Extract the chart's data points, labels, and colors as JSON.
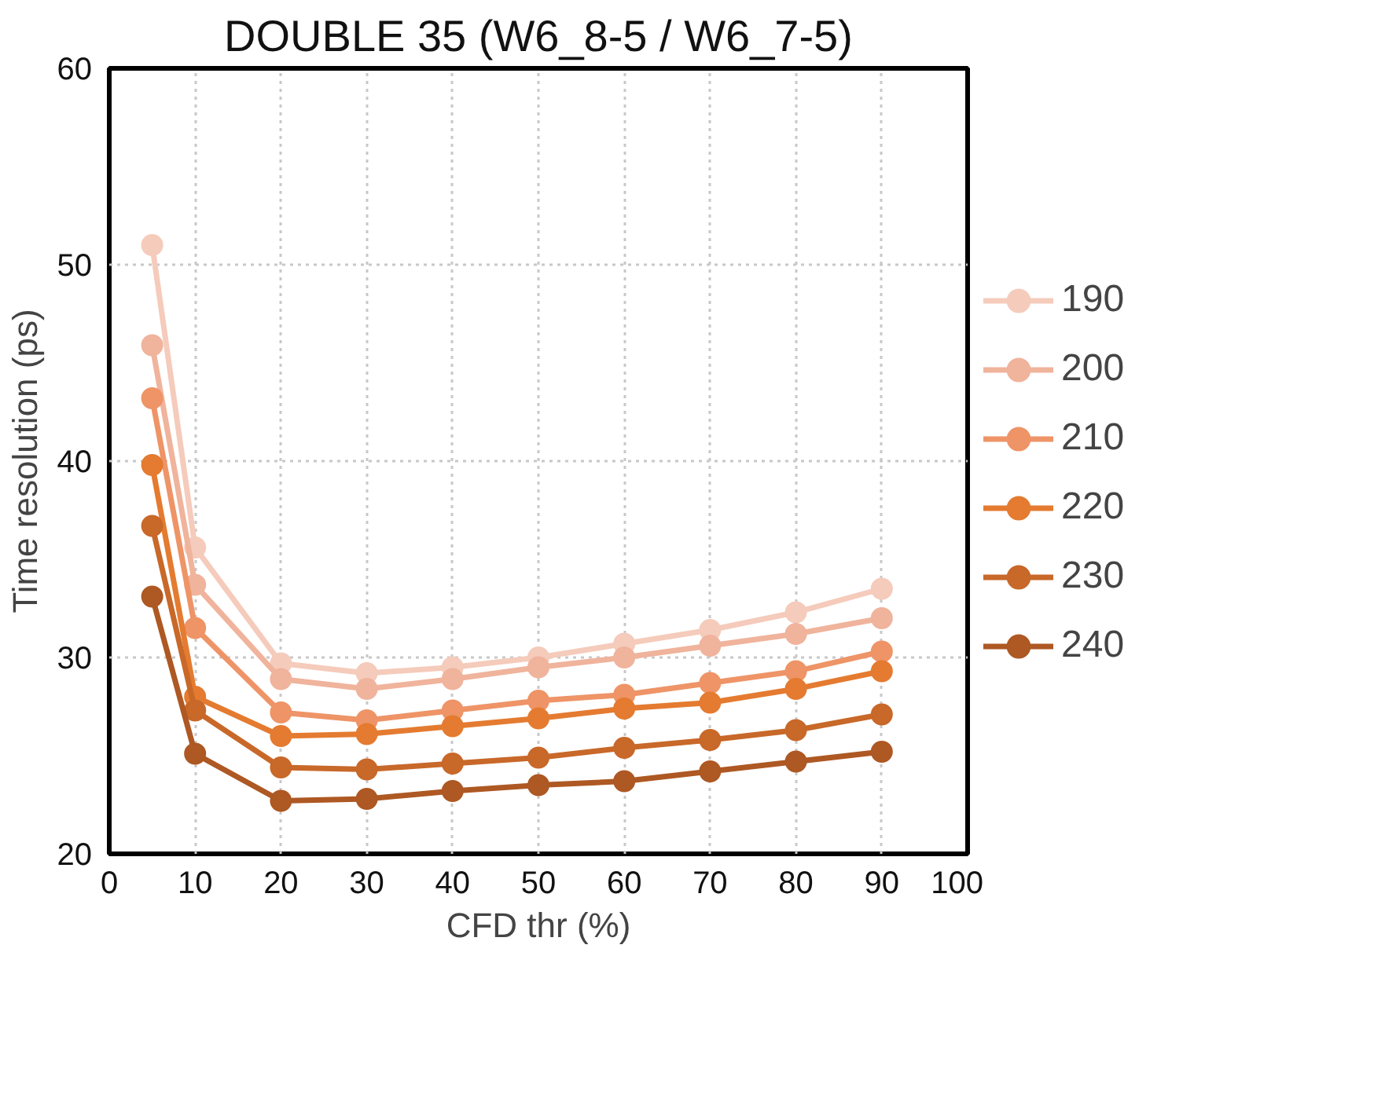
{
  "chart_data": {
    "type": "line",
    "title": "DOUBLE 35 (W6_8-5 / W6_7-5)",
    "xlabel": "CFD thr (%)",
    "ylabel": "Time resolution (ps)",
    "x": [
      5,
      10,
      20,
      30,
      40,
      50,
      60,
      70,
      80,
      90
    ],
    "xlim": [
      0,
      100
    ],
    "xticks": [
      0,
      10,
      20,
      30,
      40,
      50,
      60,
      70,
      80,
      90,
      100
    ],
    "ylim": [
      20,
      60
    ],
    "yticks": [
      20,
      30,
      40,
      50,
      60
    ],
    "grid": true,
    "legend": "center right",
    "marker": "circle",
    "line_style": "solid",
    "series": [
      {
        "name": "190",
        "color": "#f5cbbb",
        "values": [
          51.0,
          35.6,
          29.7,
          29.2,
          29.5,
          30.0,
          30.7,
          31.4,
          32.3,
          33.5
        ]
      },
      {
        "name": "200",
        "color": "#f0b39c",
        "values": [
          45.9,
          33.7,
          28.9,
          28.4,
          28.9,
          29.5,
          30.0,
          30.6,
          31.2,
          32.0
        ]
      },
      {
        "name": "210",
        "color": "#ee9467",
        "values": [
          43.2,
          31.5,
          27.2,
          26.8,
          27.3,
          27.8,
          28.1,
          28.7,
          29.3,
          30.3
        ]
      },
      {
        "name": "220",
        "color": "#e47b30",
        "values": [
          39.8,
          28.0,
          26.0,
          26.1,
          26.5,
          26.9,
          27.4,
          27.7,
          28.4,
          29.3
        ]
      },
      {
        "name": "230",
        "color": "#c86829",
        "values": [
          36.7,
          27.3,
          24.4,
          24.3,
          24.6,
          24.9,
          25.4,
          25.8,
          26.3,
          27.1
        ]
      },
      {
        "name": "240",
        "color": "#ae5823",
        "values": [
          33.1,
          25.1,
          22.7,
          22.8,
          23.2,
          23.5,
          23.7,
          24.2,
          24.7,
          25.2
        ]
      }
    ]
  }
}
